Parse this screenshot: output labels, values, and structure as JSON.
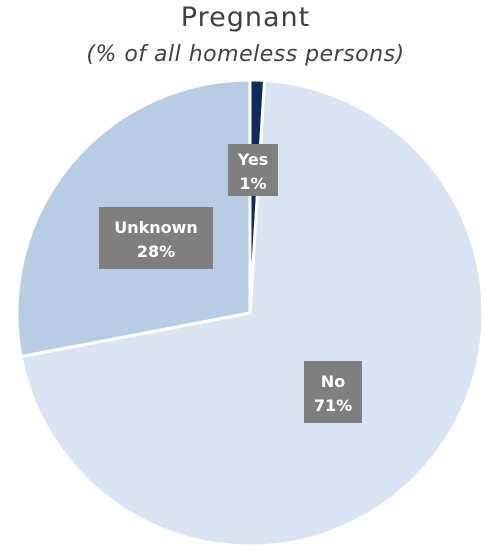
{
  "chart_data": {
    "type": "pie",
    "title": "Pregnant",
    "subtitle": "(% of all homeless persons)",
    "slices": [
      {
        "label": "Yes",
        "value": 1,
        "display": "1%",
        "color": "#0f2c5c"
      },
      {
        "label": "No",
        "value": 71,
        "display": "71%",
        "color": "#dae3f1"
      },
      {
        "label": "Unknown",
        "value": 28,
        "display": "28%",
        "color": "#b8cce4"
      }
    ],
    "label_box_color": "#7f7f7f",
    "legend": "none"
  }
}
